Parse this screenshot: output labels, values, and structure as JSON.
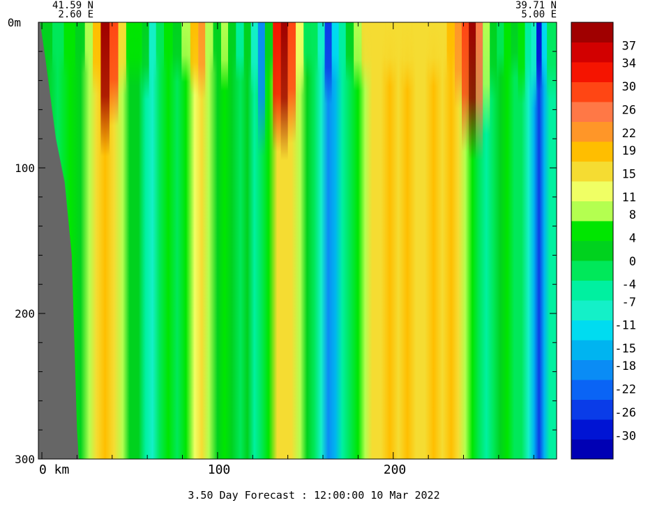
{
  "chart_data": {
    "type": "heatmap",
    "title": "",
    "footer": "3.50 Day Forecast : 12:00:00  10 Mar 2022",
    "section": {
      "start": {
        "lat": "41.59 N",
        "lon": "2.60 E"
      },
      "end": {
        "lat": "39.71 N",
        "lon": "5.00 E"
      }
    },
    "x_axis": {
      "label": "",
      "unit": "km",
      "range": [
        -2,
        293
      ],
      "tick_labels": [
        {
          "value": 0,
          "text": "0 km"
        },
        {
          "value": 100,
          "text": "100"
        },
        {
          "value": 200,
          "text": "200"
        }
      ],
      "minor_step": 20
    },
    "y_axis": {
      "label": "",
      "unit": "m",
      "inverted": true,
      "range": [
        0,
        300
      ],
      "tick_labels": [
        {
          "value": 0,
          "text": "0m"
        },
        {
          "value": 100,
          "text": "100"
        },
        {
          "value": 200,
          "text": "200"
        },
        {
          "value": 300,
          "text": "300"
        }
      ],
      "minor_step": 20
    },
    "land_mask": {
      "color": "#666666",
      "boundary": [
        {
          "depth": 0,
          "x": -1
        },
        {
          "depth": 25,
          "x": 2
        },
        {
          "depth": 80,
          "x": 8
        },
        {
          "depth": 110,
          "x": 13
        },
        {
          "depth": 160,
          "x": 17
        },
        {
          "depth": 200,
          "x": 18
        },
        {
          "depth": 240,
          "x": 19
        },
        {
          "depth": 280,
          "x": 20
        },
        {
          "depth": 300,
          "x": 21
        }
      ]
    },
    "colorbar": {
      "min": -34,
      "max": 41,
      "labels": [
        37,
        34,
        30,
        26,
        22,
        19,
        15,
        11,
        8,
        4,
        0,
        -4,
        -7,
        -11,
        -15,
        -18,
        -22,
        -26,
        -30
      ],
      "colors": [
        "#0000b4",
        "#0014d4",
        "#0a3ce8",
        "#0a64f5",
        "#0a8cf5",
        "#00b4f0",
        "#00dcf0",
        "#14f0c8",
        "#00f0a0",
        "#00e85a",
        "#00d21e",
        "#00e600",
        "#b4ff50",
        "#f0ff64",
        "#f5dc32",
        "#ffbe00",
        "#ff9628",
        "#ff7846",
        "#ff4614",
        "#f51400",
        "#d20000",
        "#a00000"
      ]
    },
    "columns": [
      {
        "x": 3,
        "value": 3,
        "shallow": 3
      },
      {
        "x": 9,
        "value": 0,
        "shallow": 0
      },
      {
        "x": 16,
        "value": 5,
        "shallow": 4
      },
      {
        "x": 22,
        "value": 2,
        "shallow": 2
      },
      {
        "x": 27,
        "value": 9,
        "shallow": 9
      },
      {
        "x": 31,
        "value": 15,
        "shallow": 20
      },
      {
        "x": 36,
        "value": 19,
        "shallow": 38
      },
      {
        "x": 41,
        "value": 16,
        "shallow": 28
      },
      {
        "x": 46,
        "value": 9,
        "shallow": 14
      },
      {
        "x": 50,
        "value": 1,
        "shallow": 4
      },
      {
        "x": 55,
        "value": 2,
        "shallow": 5
      },
      {
        "x": 59,
        "value": -5,
        "shallow": 1
      },
      {
        "x": 63,
        "value": -9,
        "shallow": -7
      },
      {
        "x": 67,
        "value": 0,
        "shallow": 0
      },
      {
        "x": 72,
        "value": 4,
        "shallow": 4
      },
      {
        "x": 77,
        "value": 0,
        "shallow": 2
      },
      {
        "x": 82,
        "value": 6,
        "shallow": 8
      },
      {
        "x": 87,
        "value": 13,
        "shallow": 18
      },
      {
        "x": 91,
        "value": 16,
        "shallow": 22
      },
      {
        "x": 95,
        "value": 8,
        "shallow": 8
      },
      {
        "x": 100,
        "value": 2,
        "shallow": 2
      },
      {
        "x": 104,
        "value": 5,
        "shallow": 9
      },
      {
        "x": 108,
        "value": 1,
        "shallow": 1
      },
      {
        "x": 113,
        "value": -2,
        "shallow": -4
      },
      {
        "x": 117,
        "value": 3,
        "shallow": 1
      },
      {
        "x": 121,
        "value": -5,
        "shallow": -10
      },
      {
        "x": 125,
        "value": -1,
        "shallow": -20
      },
      {
        "x": 129,
        "value": 5,
        "shallow": 3
      },
      {
        "x": 134,
        "value": 14,
        "shallow": 32
      },
      {
        "x": 138,
        "value": 16,
        "shallow": 40
      },
      {
        "x": 142,
        "value": 14,
        "shallow": 30
      },
      {
        "x": 147,
        "value": 7,
        "shallow": 12
      },
      {
        "x": 151,
        "value": 1,
        "shallow": 0
      },
      {
        "x": 155,
        "value": -2,
        "shallow": -3
      },
      {
        "x": 159,
        "value": -10,
        "shallow": -10
      },
      {
        "x": 163,
        "value": -18,
        "shallow": -25
      },
      {
        "x": 167,
        "value": -14,
        "shallow": -12
      },
      {
        "x": 171,
        "value": -6,
        "shallow": -4
      },
      {
        "x": 175,
        "value": 0,
        "shallow": 2
      },
      {
        "x": 180,
        "value": 4,
        "shallow": 8
      },
      {
        "x": 184,
        "value": 10,
        "shallow": 14
      },
      {
        "x": 188,
        "value": 14,
        "shallow": 16
      },
      {
        "x": 193,
        "value": 16,
        "shallow": 15
      },
      {
        "x": 198,
        "value": 18,
        "shallow": 15
      },
      {
        "x": 203,
        "value": 16,
        "shallow": 14
      },
      {
        "x": 208,
        "value": 19,
        "shallow": 15
      },
      {
        "x": 213,
        "value": 17,
        "shallow": 14
      },
      {
        "x": 218,
        "value": 16,
        "shallow": 15
      },
      {
        "x": 223,
        "value": 18,
        "shallow": 15
      },
      {
        "x": 228,
        "value": 16,
        "shallow": 14
      },
      {
        "x": 233,
        "value": 18,
        "shallow": 18
      },
      {
        "x": 237,
        "value": 14,
        "shallow": 22
      },
      {
        "x": 241,
        "value": 10,
        "shallow": 28
      },
      {
        "x": 245,
        "value": 6,
        "shallow": 38
      },
      {
        "x": 249,
        "value": 0,
        "shallow": 25
      },
      {
        "x": 253,
        "value": -6,
        "shallow": 8
      },
      {
        "x": 257,
        "value": -3,
        "shallow": 3
      },
      {
        "x": 261,
        "value": 1,
        "shallow": 0
      },
      {
        "x": 265,
        "value": 4,
        "shallow": 6
      },
      {
        "x": 269,
        "value": 0,
        "shallow": 1
      },
      {
        "x": 273,
        "value": -3,
        "shallow": 4
      },
      {
        "x": 277,
        "value": -8,
        "shallow": -4
      },
      {
        "x": 280,
        "value": -16,
        "shallow": -8
      },
      {
        "x": 283,
        "value": -26,
        "shallow": -30
      },
      {
        "x": 286,
        "value": -15,
        "shallow": -12
      },
      {
        "x": 289,
        "value": -6,
        "shallow": 0
      }
    ]
  }
}
